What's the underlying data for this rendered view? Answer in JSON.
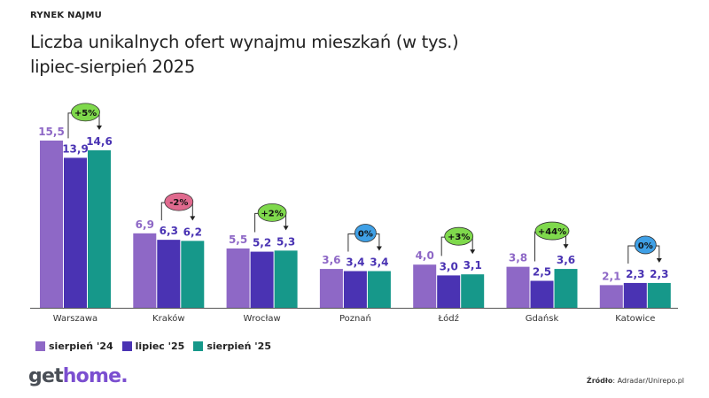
{
  "kicker": "RYNEK NAJMU",
  "title_line1": "Liczba unikalnych ofert wynajmu mieszkań (w tys.)",
  "title_line2": "lipiec-sierpień 2025",
  "logo": {
    "part1": "get",
    "part2": "home."
  },
  "source": {
    "label": "Źródło",
    "value": ": Adradar/Unirepo.pl"
  },
  "colors": {
    "s24": "#8e68c6",
    "l25": "#4a33b3",
    "s25": "#16988a",
    "up": "#7fd94c",
    "down": "#e06a8e",
    "flat": "#3fa0e6"
  },
  "chart_data": {
    "type": "bar",
    "title": "Liczba unikalnych ofert wynajmu mieszkań (w tys.)",
    "subtitle": "lipiec-sierpień 2025",
    "categories": [
      "Warszawa",
      "Kraków",
      "Wrocław",
      "Poznań",
      "Łódź",
      "Gdańsk",
      "Katowice"
    ],
    "series": [
      {
        "name": "sierpień '24",
        "values": [
          15.5,
          6.9,
          5.5,
          3.6,
          4.0,
          3.8,
          2.1
        ],
        "labels": [
          "15,5",
          "6,9",
          "5,5",
          "3,6",
          "4,0",
          "3,8",
          "2,1"
        ]
      },
      {
        "name": "lipiec '25",
        "values": [
          13.9,
          6.3,
          5.2,
          3.4,
          3.0,
          2.5,
          2.3
        ],
        "labels": [
          "13,9",
          "6,3",
          "5,2",
          "3,4",
          "3,0",
          "2,5",
          "2,3"
        ]
      },
      {
        "name": "sierpień '25",
        "values": [
          14.6,
          6.2,
          5.3,
          3.4,
          3.1,
          3.6,
          2.3
        ],
        "labels": [
          "14,6",
          "6,2",
          "5,3",
          "3,4",
          "3,1",
          "3,6",
          "2,3"
        ]
      }
    ],
    "changes": [
      {
        "label": "+5%",
        "kind": "up"
      },
      {
        "label": "-2%",
        "kind": "down"
      },
      {
        "label": "+2%",
        "kind": "up"
      },
      {
        "label": "0%",
        "kind": "flat"
      },
      {
        "label": "+3%",
        "kind": "up"
      },
      {
        "label": "+44%",
        "kind": "up"
      },
      {
        "label": "0%",
        "kind": "flat"
      }
    ],
    "ylim": [
      0,
      16
    ],
    "grid": false,
    "legend": "bottom-left"
  }
}
